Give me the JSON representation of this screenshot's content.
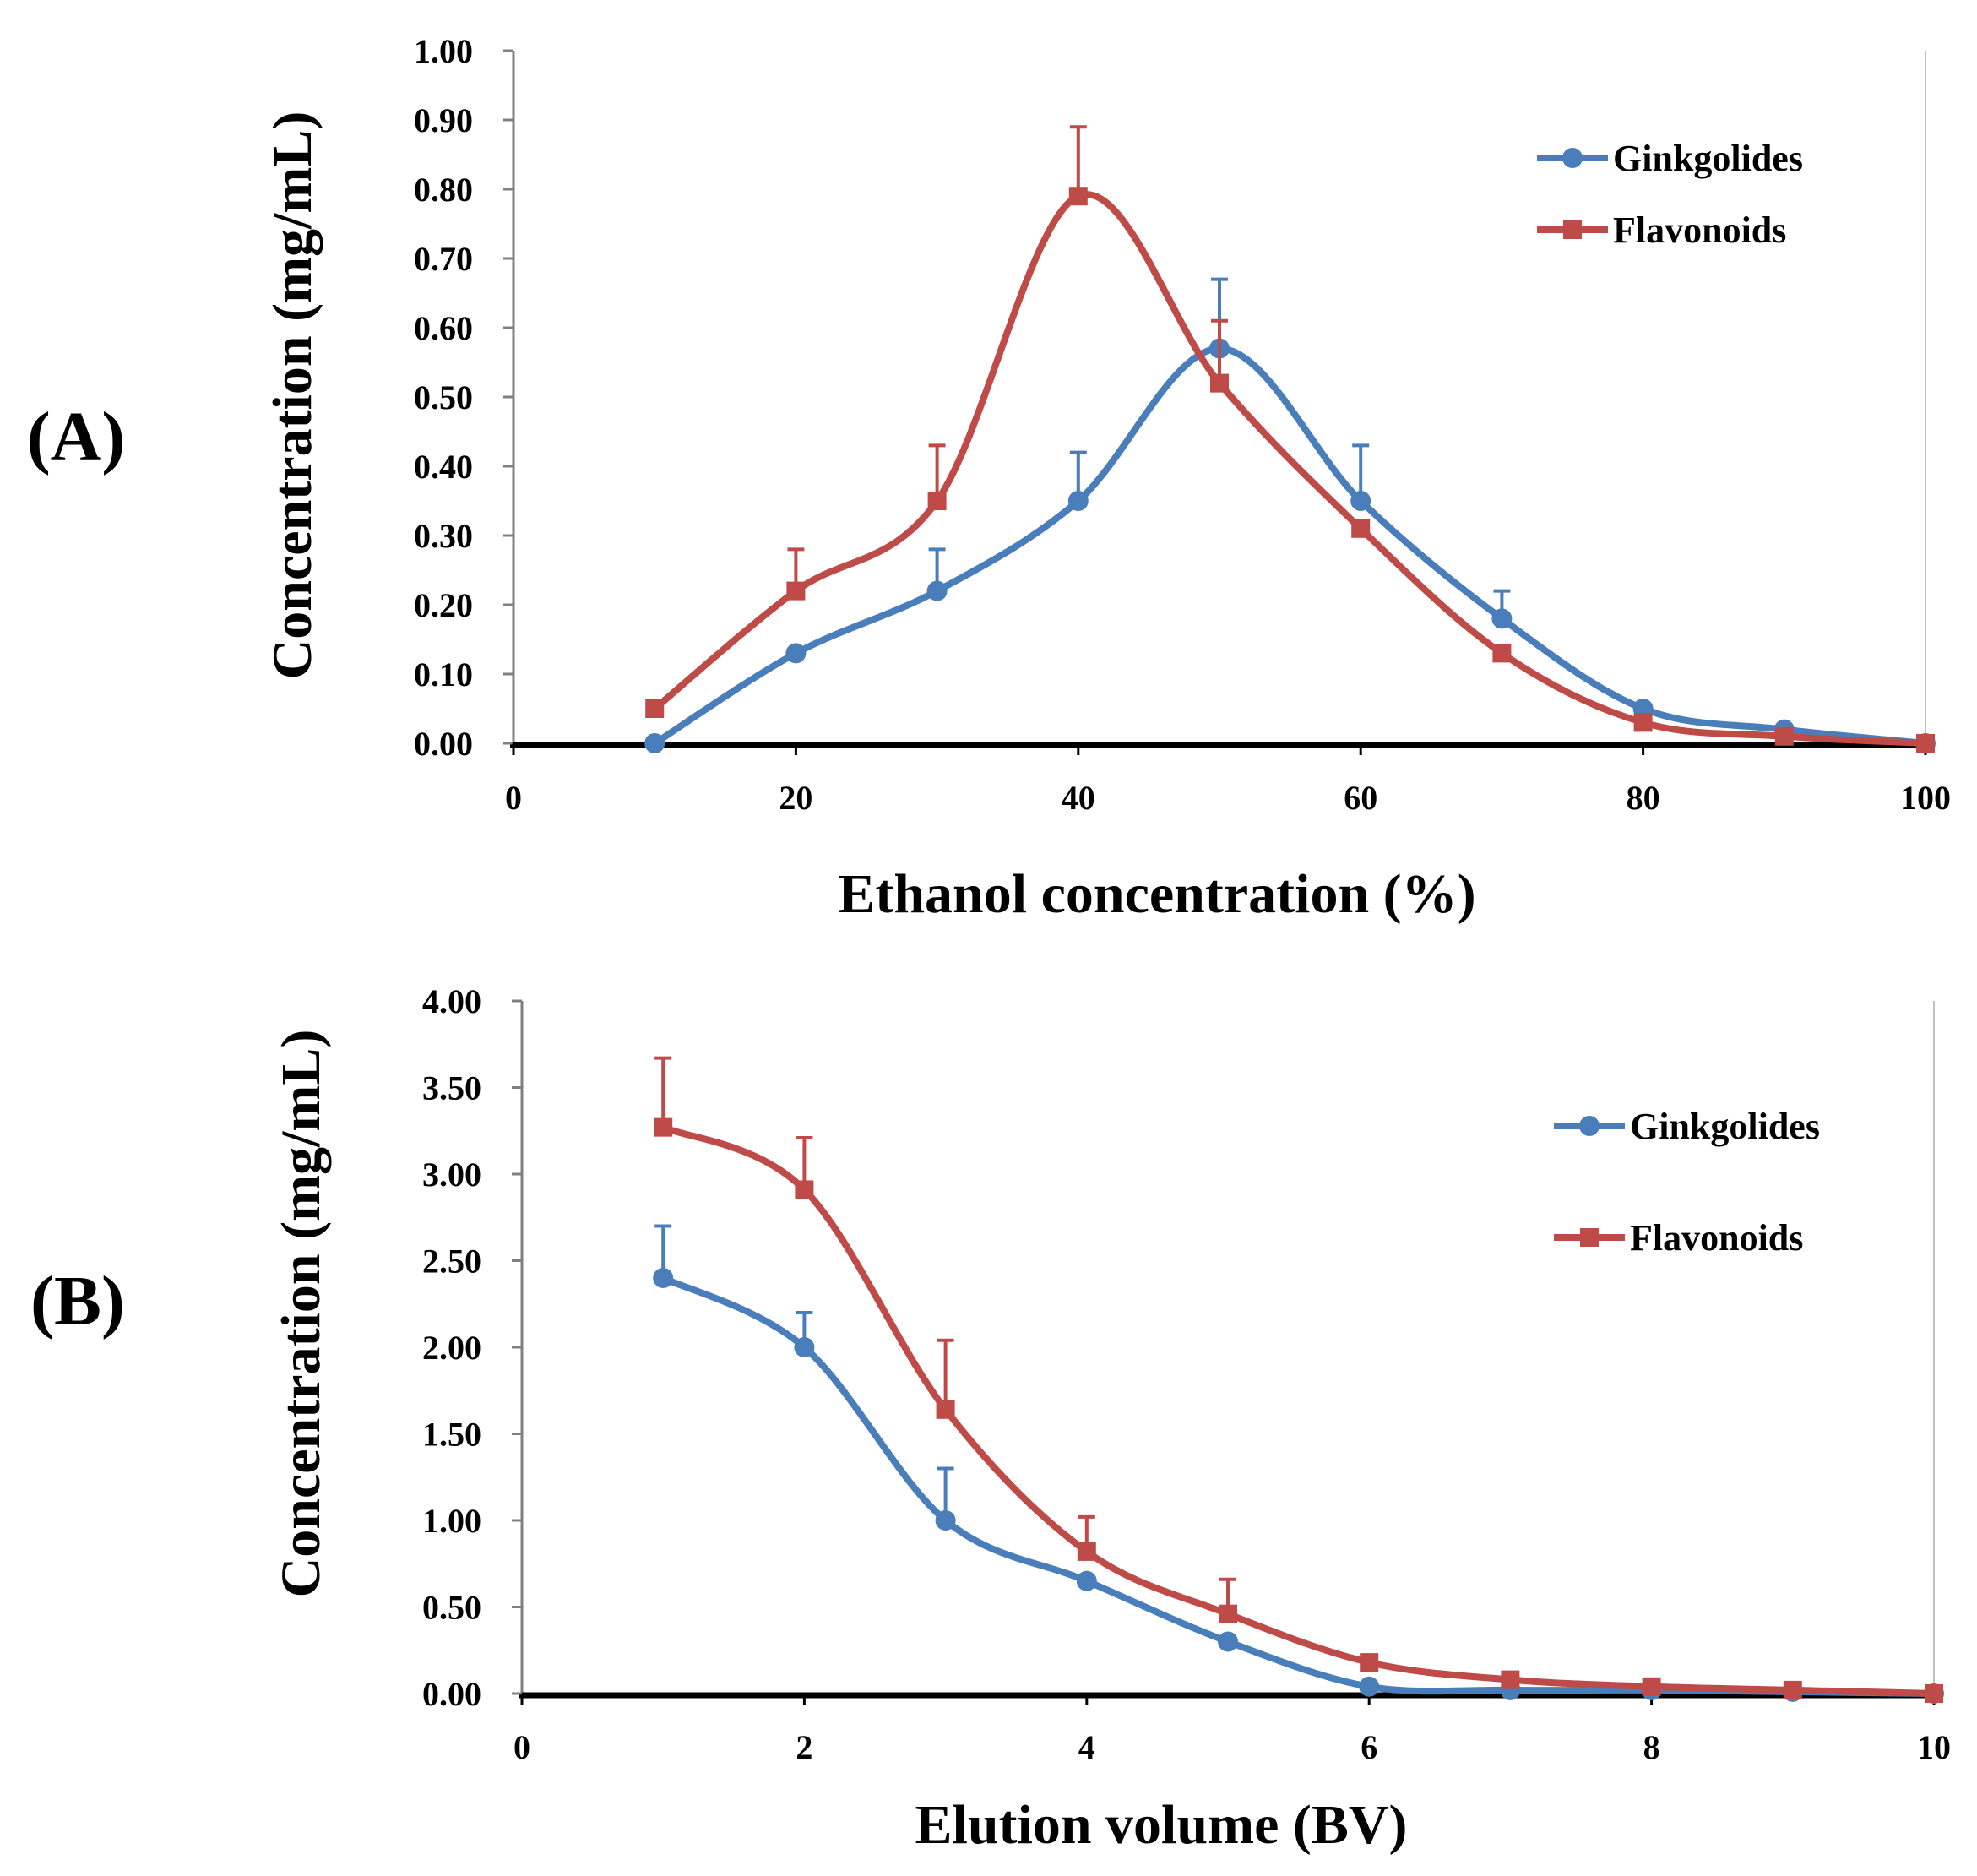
{
  "chart_data": [
    {
      "type": "line",
      "panel_label": "(A)",
      "xlabel": "Ethanol concentration (%)",
      "ylabel": "Concentration (mg/mL)",
      "xlim": [
        0,
        100
      ],
      "ylim": [
        0,
        1.0
      ],
      "xticks": [
        "0",
        "20",
        "40",
        "60",
        "80",
        "100"
      ],
      "yticks": [
        "0.00",
        "0.10",
        "0.20",
        "0.30",
        "0.40",
        "0.50",
        "0.60",
        "0.70",
        "0.80",
        "0.90",
        "1.00"
      ],
      "grid": false,
      "legend_position": "top-right",
      "series": [
        {
          "name": "Ginkgolides",
          "color": "#4a7ebb",
          "marker": "circle",
          "x": [
            10,
            20,
            30,
            40,
            50,
            60,
            70,
            80,
            90,
            100
          ],
          "y": [
            0.0,
            0.13,
            0.22,
            0.35,
            0.57,
            0.35,
            0.18,
            0.05,
            0.02,
            0.0
          ],
          "error": [
            0,
            0,
            0.06,
            0.07,
            0.1,
            0.08,
            0.04,
            0,
            0,
            0
          ]
        },
        {
          "name": "Flavonoids",
          "color": "#be4b48",
          "marker": "square",
          "x": [
            10,
            20,
            30,
            40,
            50,
            60,
            70,
            80,
            90,
            100
          ],
          "y": [
            0.05,
            0.22,
            0.35,
            0.79,
            0.52,
            0.31,
            0.13,
            0.03,
            0.01,
            0.0
          ],
          "error": [
            0,
            0.06,
            0.08,
            0.1,
            0.09,
            0,
            0,
            0,
            0,
            0
          ]
        }
      ]
    },
    {
      "type": "line",
      "panel_label": "(B)",
      "xlabel": "Elution volume (BV)",
      "ylabel": "Concentration (mg/mL)",
      "xlim": [
        0,
        10
      ],
      "ylim": [
        0,
        4.0
      ],
      "xticks": [
        "0",
        "2",
        "4",
        "6",
        "8",
        "10"
      ],
      "yticks": [
        "0.00",
        "0.50",
        "1.00",
        "1.50",
        "2.00",
        "2.50",
        "3.00",
        "3.50",
        "4.00"
      ],
      "grid": false,
      "legend_position": "top-right",
      "series": [
        {
          "name": "Ginkgolides",
          "color": "#4a7ebb",
          "marker": "circle",
          "x": [
            1,
            2,
            3,
            4,
            5,
            6,
            7,
            8,
            9,
            10
          ],
          "y": [
            2.4,
            2.0,
            1.0,
            0.65,
            0.3,
            0.04,
            0.02,
            0.02,
            0.01,
            0.0
          ],
          "error": [
            0.3,
            0.2,
            0.3,
            0,
            0,
            0,
            0,
            0,
            0,
            0
          ]
        },
        {
          "name": "Flavonoids",
          "color": "#be4b48",
          "marker": "square",
          "x": [
            1,
            2,
            3,
            4,
            5,
            6,
            7,
            8,
            9,
            10
          ],
          "y": [
            3.27,
            2.91,
            1.64,
            0.82,
            0.46,
            0.18,
            0.08,
            0.04,
            0.02,
            0.0
          ],
          "error": [
            0.4,
            0.3,
            0.4,
            0.2,
            0.2,
            0,
            0,
            0,
            0,
            0
          ]
        }
      ]
    }
  ]
}
